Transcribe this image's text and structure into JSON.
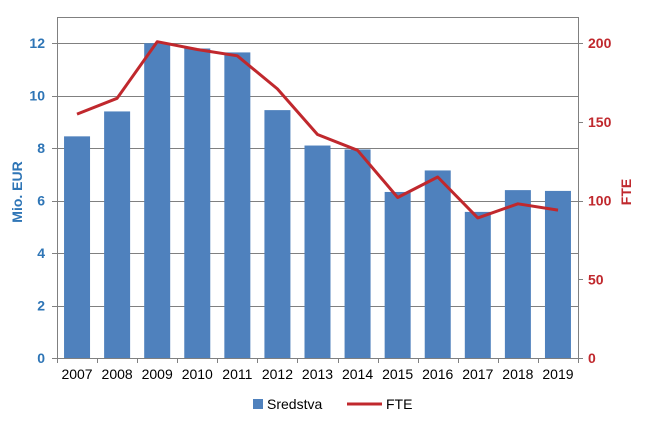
{
  "chart_data": {
    "type": "bar+line",
    "categories": [
      "2007",
      "2008",
      "2009",
      "2010",
      "2011",
      "2012",
      "2013",
      "2014",
      "2015",
      "2016",
      "2017",
      "2018",
      "2019"
    ],
    "series": [
      {
        "name": "Sredstva",
        "type": "bar",
        "axis": "left",
        "values": [
          8.45,
          9.4,
          12.0,
          11.8,
          11.65,
          9.45,
          8.1,
          7.95,
          6.33,
          7.15,
          5.57,
          6.4,
          6.37
        ],
        "color": "#4F81BD"
      },
      {
        "name": "FTE",
        "type": "line",
        "axis": "right",
        "values": [
          155,
          165,
          201,
          196,
          192,
          171,
          142,
          132,
          102,
          115,
          89,
          98,
          94
        ],
        "color": "#C0282D"
      }
    ],
    "ylabel_left": "Mio. EUR",
    "ylabel_right": "FTE",
    "ylim_left": [
      0,
      13
    ],
    "yticks_left": [
      0,
      2,
      4,
      6,
      8,
      10,
      12
    ],
    "ylim_right": [
      0,
      216.67
    ],
    "yticks_right": [
      0,
      50,
      100,
      150,
      200
    ],
    "grid": true,
    "legend_position": "bottom",
    "colors": {
      "left_axis": "#2E75B6",
      "right_axis": "#C0282D",
      "grid": "#808080"
    }
  }
}
